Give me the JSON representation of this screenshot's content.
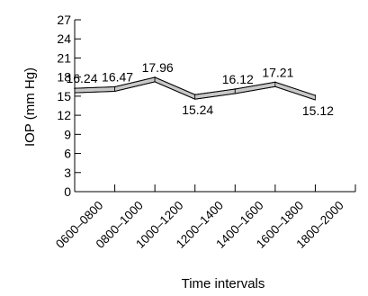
{
  "chart_data": {
    "type": "line",
    "title": "",
    "xlabel": "Time intervals",
    "ylabel": "IOP (mm Hg)",
    "ylim": [
      0,
      27
    ],
    "yticks": [
      0,
      3,
      6,
      9,
      12,
      15,
      18,
      21,
      24,
      27
    ],
    "categories": [
      "0600–0800",
      "0800–1000",
      "1000–1200",
      "1200–1400",
      "1400–1600",
      "1600–1800",
      "1800–2000"
    ],
    "values": [
      16.24,
      16.47,
      17.96,
      15.24,
      16.12,
      17.21,
      15.12
    ],
    "data_labels": [
      "16.24",
      "16.47",
      "17.96",
      "15.24",
      "16.12",
      "17.21",
      "15.12"
    ],
    "grid": false,
    "colors": {
      "line": "#000000",
      "ribbon": "#c8c8c8"
    }
  }
}
